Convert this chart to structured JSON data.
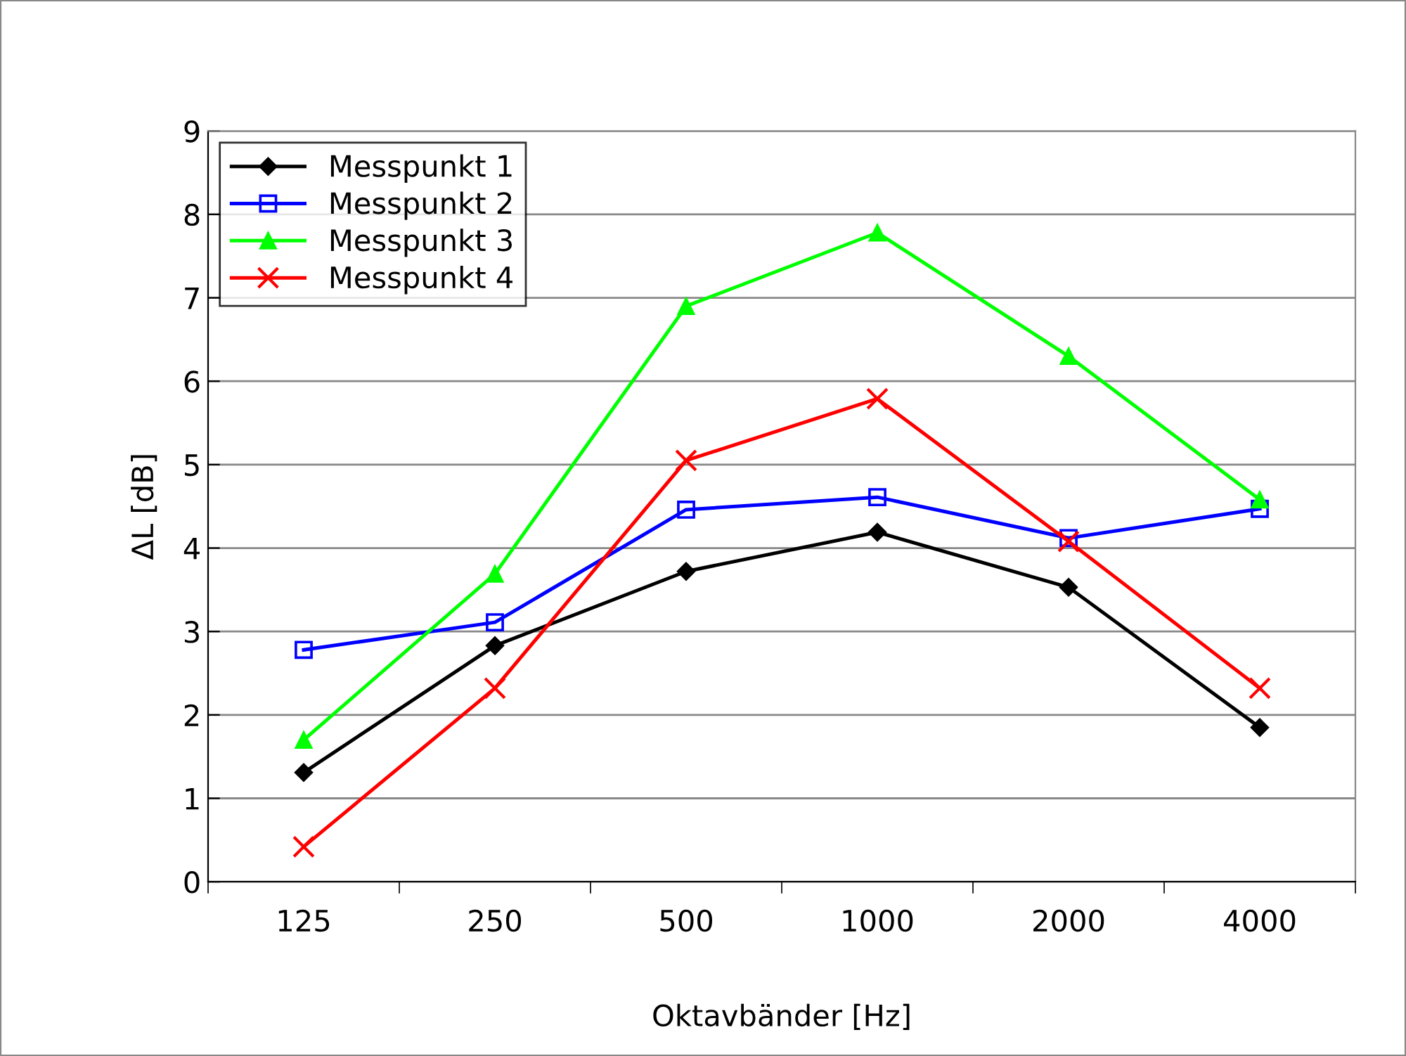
{
  "chart_data": {
    "type": "line",
    "xlabel": "Oktavbänder [Hz]",
    "ylabel": "ΔL [dB]",
    "categories": [
      "125",
      "250",
      "500",
      "1000",
      "2000",
      "4000"
    ],
    "series": [
      {
        "name": "Messpunkt 1",
        "color": "#000000",
        "marker": "diamond",
        "values": [
          1.31,
          2.83,
          3.72,
          4.19,
          3.53,
          1.85
        ]
      },
      {
        "name": "Messpunkt 2",
        "color": "#0000ff",
        "marker": "square",
        "values": [
          2.78,
          3.11,
          4.46,
          4.61,
          4.12,
          4.47
        ]
      },
      {
        "name": "Messpunkt 3",
        "color": "#00ff00",
        "marker": "triangle",
        "values": [
          1.7,
          3.69,
          6.9,
          7.78,
          6.3,
          4.58
        ]
      },
      {
        "name": "Messpunkt 4",
        "color": "#ff0000",
        "marker": "cross",
        "values": [
          0.42,
          2.32,
          5.05,
          5.79,
          4.08,
          2.32
        ]
      }
    ],
    "ylim": [
      0,
      9
    ],
    "yticks": [
      0,
      1,
      2,
      3,
      4,
      5,
      6,
      7,
      8,
      9
    ],
    "grid": "y",
    "legend": "top left",
    "line_style": "solid"
  }
}
